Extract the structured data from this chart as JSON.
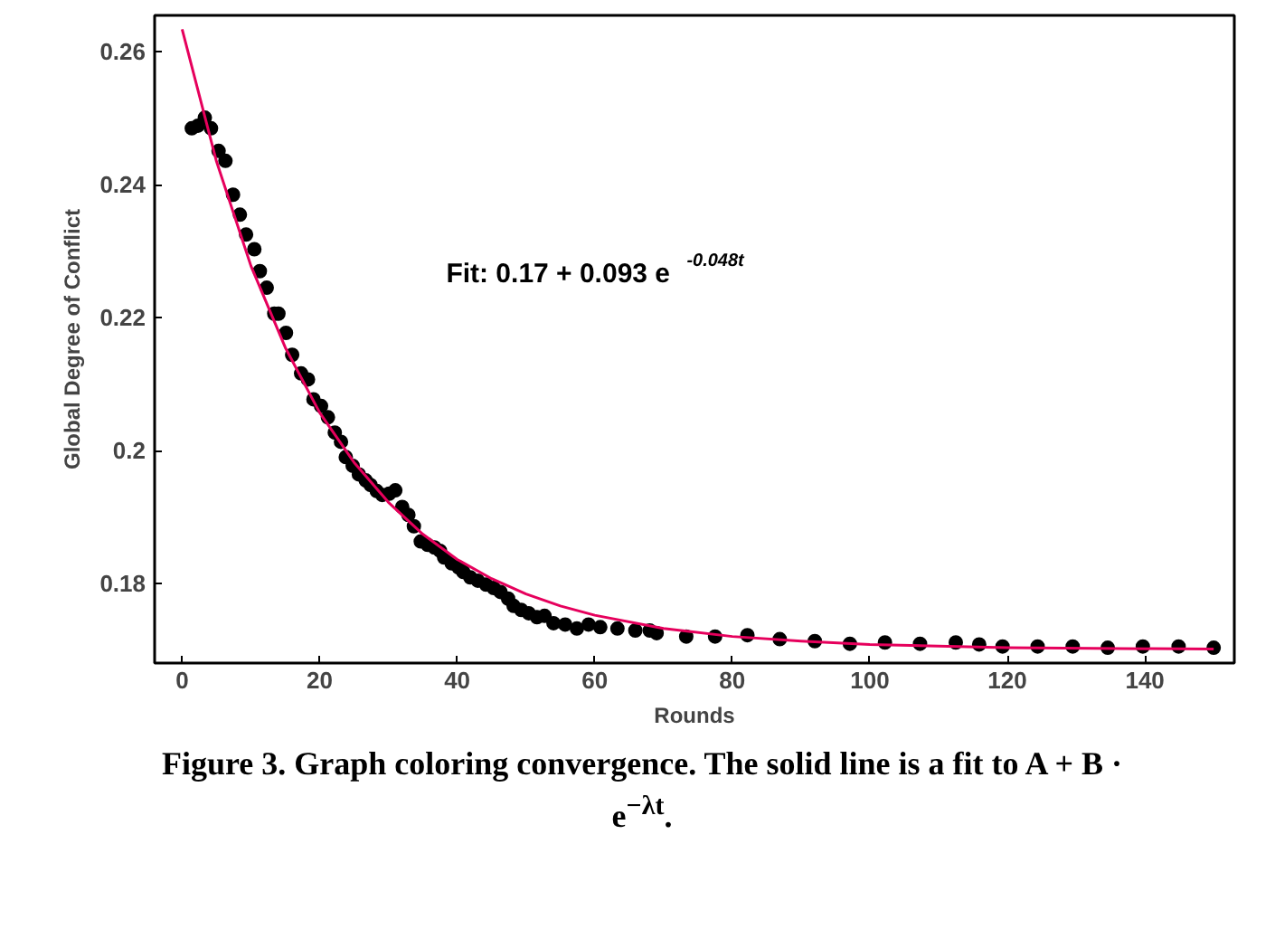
{
  "chart_data": {
    "type": "scatter",
    "xlabel": "Rounds",
    "ylabel": "Global Degree of Conflict",
    "xlim": [
      -4,
      153
    ],
    "ylim": [
      0.168,
      0.2655
    ],
    "xticks": [
      0,
      20,
      40,
      60,
      80,
      100,
      120,
      140
    ],
    "yticks": [
      0.18,
      0.2,
      0.22,
      0.24,
      0.26
    ],
    "grid": false,
    "annotations": [
      "Fit: 0.17 + 0.093 e$^{-0.048t}$",
      "Figure 3. Graph coloring convergence. The solid line is a fit to A + B · e$^{−λt}$."
    ],
    "series": [
      {
        "color": "#000000",
        "marker": "circle",
        "x": [
          1.4,
          2.3,
          3.3,
          4.2,
          5.3,
          6.3,
          7.4,
          8.4,
          9.3,
          10.5,
          11.3,
          12.3,
          13.4,
          14.0,
          15.1,
          16.0,
          17.3,
          18.3,
          19.1,
          20.2,
          21.2,
          22.2,
          23.1,
          23.8,
          24.8,
          25.7,
          26.7,
          27.4,
          28.3,
          29.1,
          30.1,
          31.0,
          32.0,
          32.9,
          33.7,
          34.7,
          35.7,
          36.7,
          37.5,
          38.1,
          39.2,
          40.2,
          40.9,
          41.9,
          43.0,
          44.2,
          45.3,
          46.3,
          47.4,
          48.2,
          49.3,
          50.4,
          51.6,
          52.7,
          54.0,
          55.7,
          57.4,
          59.1,
          60.8,
          63.3,
          65.9,
          68.0,
          69,
          73.3,
          77.5,
          82.2,
          86.9,
          92,
          97.1,
          102.2,
          107.3,
          112.5,
          115.9,
          119.3,
          124.4,
          129.5,
          134.6,
          139.7,
          144.9,
          150
        ],
        "values": [
          0.2485,
          0.2489,
          0.2501,
          0.2485,
          0.2451,
          0.2436,
          0.2385,
          0.2355,
          0.2325,
          0.2303,
          0.227,
          0.2245,
          0.2206,
          0.2206,
          0.2177,
          0.2144,
          0.2116,
          0.2107,
          0.2077,
          0.2067,
          0.205,
          0.2027,
          0.2013,
          0.199,
          0.1977,
          0.1964,
          0.1955,
          0.1948,
          0.1939,
          0.1933,
          0.1935,
          0.194,
          0.1915,
          0.1903,
          0.1886,
          0.1863,
          0.1858,
          0.1854,
          0.1849,
          0.1839,
          0.183,
          0.1824,
          0.1817,
          0.1809,
          0.1804,
          0.1798,
          0.1793,
          0.1787,
          0.1777,
          0.1766,
          0.176,
          0.1755,
          0.1749,
          0.1751,
          0.174,
          0.1738,
          0.1732,
          0.1738,
          0.1734,
          0.1732,
          0.1729,
          0.1729,
          0.1725,
          0.172,
          0.172,
          0.1722,
          0.1716,
          0.1713,
          0.1709,
          0.1711,
          0.1709,
          0.1711,
          0.1708,
          0.1705,
          0.1705,
          0.1705,
          0.1703,
          0.1705,
          0.1705,
          0.1703
        ]
      },
      {
        "type": "line",
        "color": "#e6005c",
        "x": [
          0,
          5,
          10,
          15,
          20,
          25,
          30,
          35,
          40,
          45,
          50,
          55,
          60,
          70,
          80,
          90,
          100,
          120,
          150
        ],
        "values": [
          0.2634,
          0.2435,
          0.2278,
          0.2155,
          0.2057,
          0.1982,
          0.1922,
          0.1874,
          0.1836,
          0.1807,
          0.1784,
          0.1766,
          0.1752,
          0.1732,
          0.172,
          0.1713,
          0.1708,
          0.1703,
          0.1701
        ]
      }
    ]
  }
}
